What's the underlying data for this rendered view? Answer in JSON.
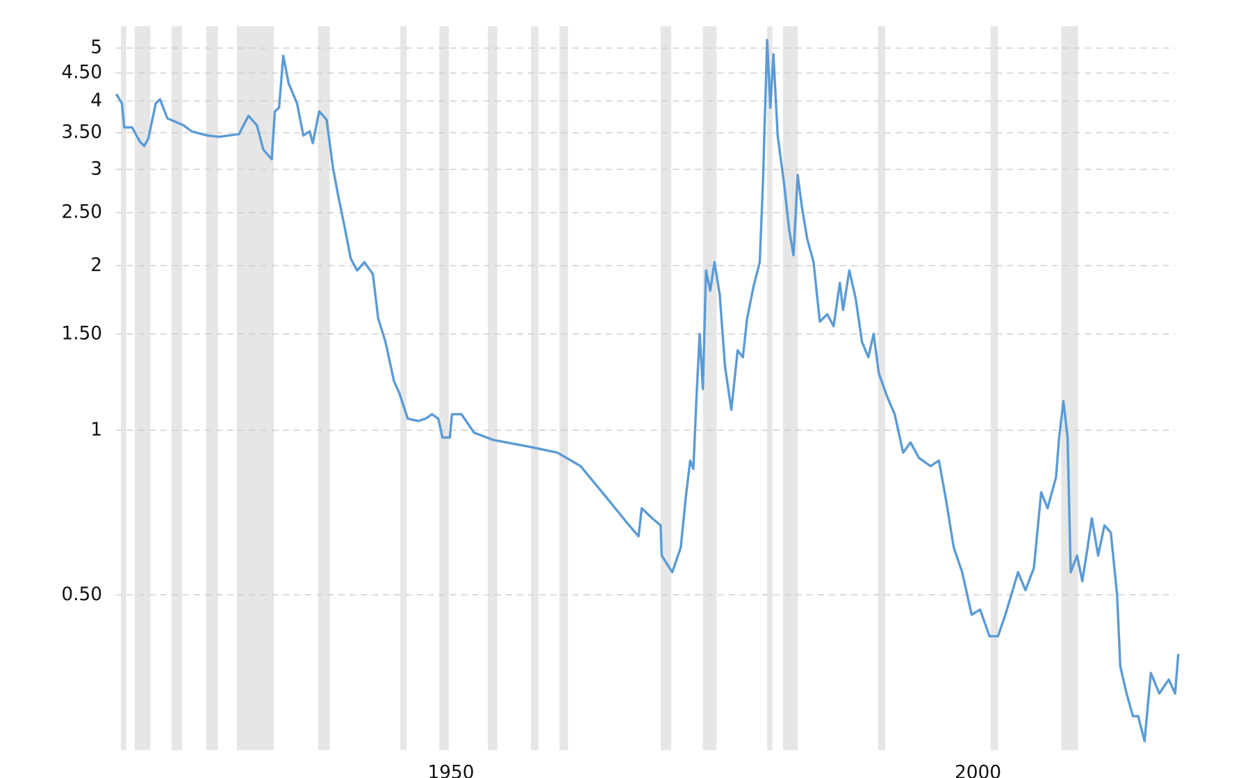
{
  "chart_data": {
    "type": "line",
    "log_y": true,
    "grid": true,
    "xlim": [
      1918.2,
      2019.2
    ],
    "ylim": [
      0.26,
      5.3
    ],
    "xticks": [
      1950,
      2000
    ],
    "yticks": [
      {
        "value": 0.5,
        "label": "0.50"
      },
      1,
      {
        "value": 1.5,
        "label": "1.50"
      },
      2,
      {
        "value": 2.5,
        "label": "2.50"
      },
      3,
      {
        "value": 3.5,
        "label": "3.50"
      },
      4,
      {
        "value": 4.5,
        "label": "4.50"
      },
      5
    ],
    "recessions": [
      [
        1918.7,
        1919.2
      ],
      [
        1920.0,
        1921.5
      ],
      [
        1923.5,
        1924.5
      ],
      [
        1926.8,
        1927.9
      ],
      [
        1929.7,
        1933.2
      ],
      [
        1937.4,
        1938.5
      ],
      [
        1945.2,
        1945.8
      ],
      [
        1948.9,
        1949.8
      ],
      [
        1953.5,
        1954.4
      ],
      [
        1957.6,
        1958.3
      ],
      [
        1960.3,
        1961.1
      ],
      [
        1969.9,
        1970.9
      ],
      [
        1973.9,
        1975.2
      ],
      [
        1980.0,
        1980.5
      ],
      [
        1981.5,
        1982.9
      ],
      [
        1990.5,
        1991.2
      ],
      [
        2001.2,
        2001.9
      ],
      [
        2007.9,
        2009.5
      ]
    ],
    "recession_color": "#e6e6e6",
    "x": [
      1918.25,
      1918.8,
      1919.0,
      1919.75,
      1920.5,
      1920.9,
      1921.3,
      1922.0,
      1922.4,
      1923.1,
      1924.65,
      1925.4,
      1926.9,
      1928.0,
      1929.9,
      1930.8,
      1931.6,
      1932.2,
      1933.0,
      1933.3,
      1933.7,
      1934.1,
      1934.6,
      1935.4,
      1936.0,
      1936.6,
      1936.9,
      1937.5,
      1938.2,
      1938.8,
      1939.3,
      1939.9,
      1940.5,
      1941.1,
      1941.8,
      1942.6,
      1943.1,
      1943.8,
      1944.6,
      1945.1,
      1945.9,
      1946.9,
      1947.6,
      1948.2,
      1948.8,
      1949.2,
      1949.9,
      1950.1,
      1951.0,
      1952.2,
      1954.0,
      1957.8,
      1960.1,
      1962.3,
      1964.6,
      1966.9,
      1967.8,
      1968.1,
      1969.1,
      1969.9,
      1970.0,
      1971.0,
      1971.8,
      1972.3,
      1972.7,
      1973.0,
      1973.3,
      1973.6,
      1973.9,
      1974.2,
      1974.6,
      1975.0,
      1975.5,
      1976.0,
      1976.6,
      1977.2,
      1977.7,
      1978.1,
      1978.7,
      1979.3,
      1979.6,
      1980.0,
      1980.3,
      1980.6,
      1981.0,
      1981.6,
      1982.1,
      1982.5,
      1982.9,
      1983.3,
      1983.8,
      1984.4,
      1985.0,
      1985.7,
      1986.3,
      1986.9,
      1987.2,
      1987.8,
      1988.4,
      1989.0,
      1989.6,
      1990.1,
      1990.6,
      1991.4,
      1992.1,
      1992.9,
      1993.6,
      1994.4,
      1995.5,
      1996.3,
      1997.0,
      1997.7,
      1998.5,
      1999.4,
      2000.2,
      2001.1,
      2001.9,
      2002.6,
      2003.8,
      2004.5,
      2005.3,
      2006.0,
      2006.6,
      2007.4,
      2007.7,
      2008.1,
      2008.5,
      2008.8,
      2009.4,
      2009.9,
      2010.4,
      2010.8,
      2011.4,
      2012.0,
      2012.6,
      2013.2,
      2013.5,
      2014.1,
      2014.7,
      2015.2,
      2015.8,
      2016.4,
      2017.2,
      2018.1,
      2018.7,
      2019.0
    ],
    "series": [
      {
        "color": "#5b9bd5",
        "values": [
          4.12,
          3.96,
          3.58,
          3.58,
          3.37,
          3.31,
          3.42,
          3.96,
          4.03,
          3.72,
          3.61,
          3.52,
          3.46,
          3.44,
          3.48,
          3.76,
          3.61,
          3.26,
          3.13,
          3.83,
          3.89,
          4.84,
          4.31,
          3.96,
          3.46,
          3.52,
          3.35,
          3.83,
          3.7,
          3.03,
          2.69,
          2.36,
          2.06,
          1.96,
          2.03,
          1.93,
          1.6,
          1.45,
          1.23,
          1.17,
          1.05,
          1.04,
          1.05,
          1.07,
          1.05,
          0.97,
          0.97,
          1.07,
          1.07,
          0.99,
          0.96,
          0.93,
          0.91,
          0.86,
          0.76,
          0.67,
          0.64,
          0.72,
          0.69,
          0.67,
          0.59,
          0.55,
          0.61,
          0.76,
          0.88,
          0.85,
          1.15,
          1.5,
          1.19,
          1.96,
          1.8,
          2.03,
          1.77,
          1.31,
          1.09,
          1.4,
          1.36,
          1.6,
          1.83,
          2.03,
          2.83,
          5.17,
          3.89,
          4.87,
          3.46,
          2.83,
          2.32,
          2.09,
          2.93,
          2.56,
          2.24,
          2.03,
          1.58,
          1.63,
          1.55,
          1.86,
          1.66,
          1.96,
          1.74,
          1.45,
          1.36,
          1.5,
          1.27,
          1.15,
          1.07,
          0.91,
          0.95,
          0.89,
          0.86,
          0.88,
          0.74,
          0.61,
          0.55,
          0.46,
          0.47,
          0.42,
          0.42,
          0.46,
          0.55,
          0.51,
          0.56,
          0.77,
          0.72,
          0.82,
          0.97,
          1.13,
          0.97,
          0.55,
          0.59,
          0.53,
          0.61,
          0.69,
          0.59,
          0.67,
          0.65,
          0.5,
          0.37,
          0.33,
          0.3,
          0.3,
          0.27,
          0.36,
          0.33,
          0.35,
          0.33,
          0.39
        ]
      }
    ]
  }
}
